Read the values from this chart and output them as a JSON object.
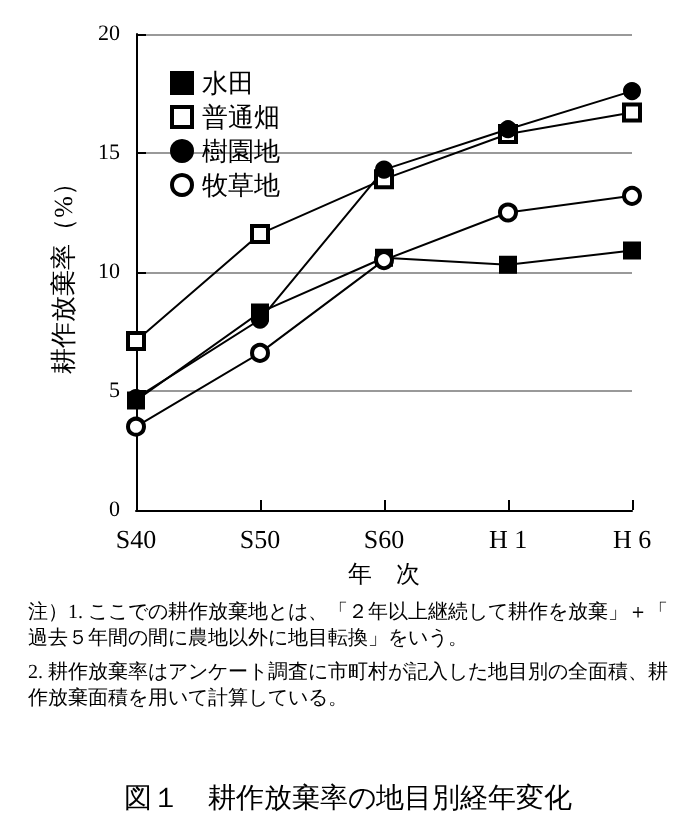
{
  "chart_data": {
    "type": "line",
    "title": "図１　耕作放棄率の地目別経年変化",
    "xlabel": "年　次",
    "ylabel": "耕作放棄率（%）",
    "annotations": [
      "注）1. ここでの耕作放棄地とは、「２年以上継続して耕作を放棄」＋「過去５年間の間に農地以外に地目転換」をいう。",
      "2. 耕作放棄率はアンケート調査に市町村が記入した地目別の全面積、耕作放棄面積を用いて計算している。"
    ],
    "categories": [
      "S40",
      "S50",
      "S60",
      "H 1",
      "H 6"
    ],
    "series": [
      {
        "name": "水田",
        "color": "#000000",
        "marker": "square",
        "values": [
          4.6,
          8.3,
          10.6,
          10.3,
          10.9
        ]
      },
      {
        "name": "普通畑",
        "color": "#000000",
        "marker": "square-open",
        "values": [
          7.1,
          11.6,
          13.9,
          15.8,
          16.7
        ]
      },
      {
        "name": "樹園地",
        "color": "#000000",
        "marker": "circle",
        "values": [
          4.7,
          8.0,
          14.3,
          16.0,
          17.6
        ]
      },
      {
        "name": "牧草地",
        "color": "#000000",
        "marker": "circle-open",
        "values": [
          3.5,
          6.6,
          10.5,
          12.5,
          13.2
        ]
      }
    ],
    "ylim": [
      0,
      20
    ],
    "yticks": [
      0,
      5,
      10,
      15,
      20
    ],
    "grid": "y",
    "legend": "top left",
    "line_style": "solid"
  }
}
